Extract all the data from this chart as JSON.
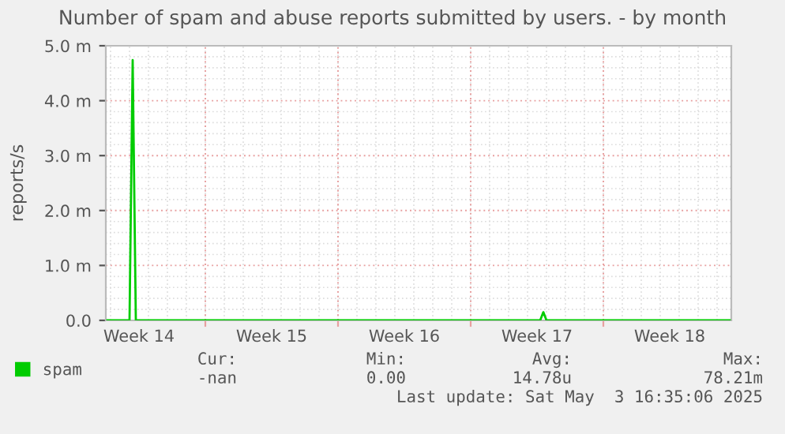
{
  "chart_data": {
    "type": "line",
    "title": "Number of spam and abuse reports submitted by users. - by month",
    "ylabel": "reports/s",
    "categories": [
      null,
      null,
      null,
      null,
      null,
      null,
      null,
      null,
      null,
      null,
      "Week 14",
      null,
      null,
      null,
      null,
      null,
      null,
      null,
      null,
      null,
      null,
      null,
      null,
      null,
      null,
      null,
      null,
      null,
      null,
      null,
      null,
      null,
      null,
      null,
      null,
      null,
      null,
      null,
      null,
      null,
      null,
      null,
      null,
      null,
      null,
      null,
      null,
      null,
      null,
      null,
      null,
      null,
      "Week 15",
      null,
      null,
      null,
      null,
      null,
      null,
      null,
      null,
      null,
      null,
      null,
      null,
      null,
      null,
      null,
      null,
      null,
      null,
      null,
      null,
      null,
      null,
      null,
      null,
      null,
      null,
      null,
      null,
      null,
      null,
      null,
      null,
      null,
      null,
      null,
      null,
      null,
      null,
      null,
      null,
      null,
      "Week 16",
      null,
      null,
      null,
      null,
      null,
      null,
      null,
      null,
      null,
      null,
      null,
      null,
      null,
      null,
      null,
      null,
      null,
      null,
      null,
      null,
      null,
      null,
      null,
      null,
      null,
      null,
      null,
      null,
      null,
      null,
      null,
      null,
      null,
      null,
      null,
      null,
      null,
      null,
      null,
      null,
      null,
      "Week 17",
      null,
      null,
      null,
      null,
      null,
      null,
      null,
      null,
      null,
      null,
      null,
      null,
      null,
      null,
      null,
      null,
      null,
      null,
      null,
      null,
      null,
      null,
      null,
      null,
      null,
      null,
      null,
      null,
      null,
      null,
      null,
      null,
      null,
      null,
      null,
      null,
      null,
      null,
      null,
      null,
      null,
      "Week 18",
      null,
      null,
      null,
      null,
      null,
      null,
      null,
      null,
      null,
      null,
      null,
      null,
      null,
      null,
      null,
      null,
      null,
      null,
      null
    ],
    "series": [
      {
        "name": "spam",
        "color": "#00cc00",
        "values": [
          0,
          0,
          0,
          0,
          0,
          0,
          0,
          0,
          4.74,
          0,
          0,
          0,
          0,
          0,
          0,
          0,
          0,
          0,
          0,
          0,
          0,
          0,
          0,
          0,
          0,
          0,
          0,
          0,
          0,
          0,
          0,
          0,
          0,
          0,
          0,
          0,
          0,
          0,
          0,
          0,
          0,
          0,
          0,
          0,
          0,
          0,
          0,
          0,
          0,
          0,
          0,
          0,
          0,
          0,
          0,
          0,
          0,
          0,
          0,
          0,
          0,
          0,
          0,
          0,
          0,
          0,
          0,
          0,
          0,
          0,
          0,
          0,
          0,
          0,
          0,
          0,
          0,
          0,
          0,
          0,
          0,
          0,
          0,
          0,
          0,
          0,
          0,
          0,
          0,
          0,
          0,
          0,
          0,
          0,
          0,
          0,
          0,
          0,
          0,
          0,
          0,
          0,
          0,
          0,
          0,
          0,
          0,
          0,
          0,
          0,
          0,
          0,
          0,
          0,
          0,
          0,
          0,
          0,
          0,
          0,
          0,
          0,
          0,
          0,
          0,
          0,
          0,
          0,
          0,
          0,
          0,
          0,
          0,
          0,
          0,
          0,
          0,
          0,
          0.15,
          0,
          0,
          0,
          0,
          0,
          0,
          0,
          0,
          0,
          0,
          0,
          0,
          0,
          0,
          0,
          0,
          0,
          0,
          0,
          0,
          0,
          0,
          0,
          0,
          0,
          0,
          0,
          0,
          0,
          0,
          0,
          0,
          0,
          0,
          0,
          0,
          0,
          0,
          0,
          0,
          0,
          0,
          0,
          0,
          0,
          0,
          0,
          0,
          0,
          0,
          0,
          0,
          0,
          0,
          0,
          0,
          0,
          0,
          0
        ]
      }
    ],
    "ylim": [
      0,
      5
    ],
    "yticks": [
      {
        "value": 0,
        "label": "0.0"
      },
      {
        "value": 1,
        "label": "1.0 m"
      },
      {
        "value": 2,
        "label": "2.0 m"
      },
      {
        "value": 3,
        "label": "3.0 m"
      },
      {
        "value": 4,
        "label": "4.0 m"
      },
      {
        "value": 5,
        "label": "5.0 m"
      }
    ],
    "grid": true,
    "legend": "bottom left",
    "marker": "none",
    "line_style": "solid",
    "annotations": [
      "Cur:",
      "Min:",
      "Avg:",
      "Max:",
      "-nan",
      "0.00",
      "14.78u",
      "78.21m",
      "Last update: Sat May  3 16:35:06 2025"
    ]
  }
}
